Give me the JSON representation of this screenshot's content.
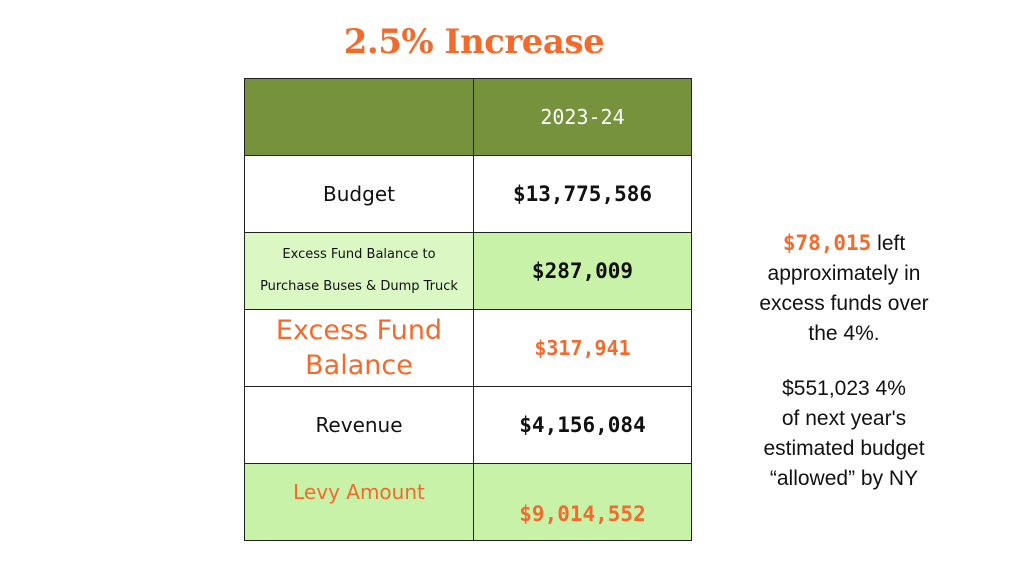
{
  "title": "2.5% Increase",
  "table": {
    "header": {
      "left": "",
      "right": "2023-24"
    },
    "rows": [
      {
        "label": "Budget",
        "value": "$13,775,586"
      },
      {
        "label_line1": "Excess Fund Balance to",
        "label_line2": "Purchase Buses & Dump Truck",
        "value": "$287,009"
      },
      {
        "label_line1": "Excess Fund",
        "label_line2": "Balance",
        "value": "$317,941"
      },
      {
        "label": "Revenue",
        "value": "$4,156,084"
      },
      {
        "label": "Levy Amount",
        "value": "$9,014,552"
      }
    ]
  },
  "notes": {
    "note1": {
      "highlight": "$78,015",
      "line1_rest": " left",
      "line2": "approximately in",
      "line3": "excess funds over",
      "line4": "the 4%."
    },
    "note2": {
      "line1": "$551,023 4%",
      "line2": "of next year's",
      "line3": "estimated budget",
      "line4": "“allowed” by NY"
    }
  },
  "colors": {
    "accent_orange": "#f26a2c",
    "header_green": "#76923c",
    "row_light_green": "#c9f2a9"
  }
}
